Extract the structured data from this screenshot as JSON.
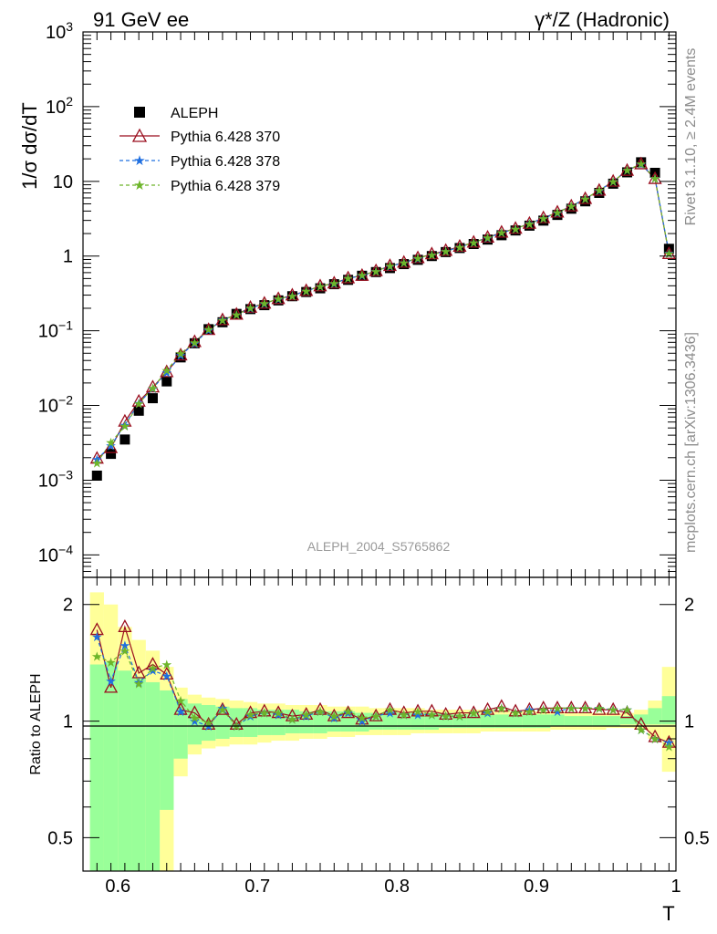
{
  "header": {
    "left": "91 GeV ee",
    "right": "γ*/Z (Hadronic)"
  },
  "side_text": {
    "upper": "Rivet 3.1.10, ≥ 2.4M events",
    "lower": "mcplots.cern.ch [arXiv:1306.3436]"
  },
  "analysis_label": "ALEPH_2004_S5765862",
  "colors": {
    "data": "#000000",
    "p370": "#9a0e1e",
    "p378": "#1f6fe0",
    "p379": "#6db52a",
    "band_yellow": "#ffff99",
    "band_green": "#99ff99"
  },
  "chart_data": [
    {
      "type": "scatter",
      "panel": "main",
      "ylabel": "1/σ dσ/dT",
      "yscale": "log",
      "ylim": [
        5e-05,
        1000
      ],
      "xlim": [
        0.575,
        1.0
      ],
      "y_ticks": [
        "10^-4",
        "10^-3",
        "10^-2",
        "10^-1",
        "1",
        "10",
        "10^2",
        "10^3"
      ],
      "legend_position": "top-left",
      "legend": [
        "ALEPH",
        "Pythia 6.428 370",
        "Pythia 6.428 378",
        "Pythia 6.428 379"
      ],
      "x": [
        0.585,
        0.595,
        0.605,
        0.615,
        0.625,
        0.635,
        0.645,
        0.655,
        0.665,
        0.675,
        0.685,
        0.695,
        0.705,
        0.715,
        0.725,
        0.735,
        0.745,
        0.755,
        0.765,
        0.775,
        0.785,
        0.795,
        0.805,
        0.815,
        0.825,
        0.835,
        0.845,
        0.855,
        0.865,
        0.875,
        0.885,
        0.895,
        0.905,
        0.915,
        0.925,
        0.935,
        0.945,
        0.955,
        0.965,
        0.975,
        0.985,
        0.995
      ],
      "series": [
        {
          "name": "ALEPH",
          "values": [
            0.00115,
            0.00225,
            0.0035,
            0.0085,
            0.0125,
            0.021,
            0.044,
            0.068,
            0.105,
            0.13,
            0.168,
            0.195,
            0.22,
            0.255,
            0.29,
            0.33,
            0.37,
            0.42,
            0.48,
            0.545,
            0.61,
            0.69,
            0.78,
            0.89,
            1.0,
            1.13,
            1.28,
            1.45,
            1.66,
            1.9,
            2.2,
            2.55,
            2.98,
            3.55,
            4.3,
            5.4,
            7.0,
            9.3,
            13.2,
            18.0,
            13.0,
            1.25
          ]
        },
        {
          "name": "Pythia 6.428 370",
          "values": [
            0.00195,
            0.0027,
            0.0061,
            0.0113,
            0.0175,
            0.028,
            0.047,
            0.071,
            0.103,
            0.139,
            0.165,
            0.204,
            0.232,
            0.267,
            0.298,
            0.342,
            0.395,
            0.432,
            0.506,
            0.547,
            0.631,
            0.738,
            0.817,
            0.941,
            1.06,
            1.18,
            1.34,
            1.52,
            1.77,
            2.07,
            2.33,
            2.72,
            3.23,
            3.84,
            4.64,
            5.83,
            7.53,
            9.94,
            13.9,
            17.0,
            10.8,
            1.07
          ]
        },
        {
          "name": "Pythia 6.428 378",
          "values": [
            0.0019,
            0.0029,
            0.0055,
            0.0107,
            0.0169,
            0.0275,
            0.0469,
            0.0681,
            0.102,
            0.14,
            0.163,
            0.2,
            0.231,
            0.264,
            0.293,
            0.341,
            0.393,
            0.429,
            0.502,
            0.547,
            0.626,
            0.728,
            0.816,
            0.925,
            1.04,
            1.16,
            1.32,
            1.52,
            1.75,
            2.05,
            2.31,
            2.72,
            3.2,
            3.77,
            4.65,
            5.83,
            7.55,
            9.96,
            14.1,
            17.0,
            11.0,
            1.1
          ]
        },
        {
          "name": "Pythia 6.428 379",
          "values": [
            0.0017,
            0.0032,
            0.0053,
            0.0106,
            0.0171,
            0.0294,
            0.0497,
            0.0695,
            0.104,
            0.139,
            0.163,
            0.202,
            0.232,
            0.267,
            0.294,
            0.343,
            0.392,
            0.434,
            0.508,
            0.554,
            0.626,
            0.739,
            0.814,
            0.944,
            1.04,
            1.16,
            1.32,
            1.52,
            1.76,
            2.05,
            2.32,
            2.71,
            3.2,
            3.84,
            4.65,
            5.85,
            7.57,
            9.96,
            14.1,
            17.1,
            11.0,
            1.08
          ]
        }
      ]
    },
    {
      "type": "line",
      "panel": "ratio",
      "ylabel": "Ratio to ALEPH",
      "xlabel": "T",
      "ylim": [
        0.41,
        2.35
      ],
      "y_ticks": [
        "0.5",
        "1",
        "2"
      ],
      "x_ticks": [
        "0.6",
        "0.7",
        "0.8",
        "0.9",
        "1"
      ],
      "x": [
        0.585,
        0.595,
        0.605,
        0.615,
        0.625,
        0.635,
        0.645,
        0.655,
        0.665,
        0.675,
        0.685,
        0.695,
        0.705,
        0.715,
        0.725,
        0.735,
        0.745,
        0.755,
        0.765,
        0.775,
        0.785,
        0.795,
        0.805,
        0.815,
        0.825,
        0.835,
        0.845,
        0.855,
        0.865,
        0.875,
        0.885,
        0.895,
        0.905,
        0.915,
        0.925,
        0.935,
        0.945,
        0.955,
        0.965,
        0.975,
        0.985,
        0.995
      ],
      "band_stat": {
        "lo": [
          0.41,
          0.41,
          0.41,
          0.41,
          0.41,
          0.59,
          0.8,
          0.87,
          0.89,
          0.9,
          0.91,
          0.91,
          0.92,
          0.92,
          0.93,
          0.93,
          0.93,
          0.94,
          0.94,
          0.94,
          0.95,
          0.95,
          0.95,
          0.95,
          0.95,
          0.96,
          0.96,
          0.96,
          0.96,
          0.96,
          0.96,
          0.96,
          0.96,
          0.97,
          0.97,
          0.97,
          0.97,
          0.97,
          0.98,
          0.98,
          0.98,
          0.98
        ],
        "hi": [
          1.4,
          1.42,
          1.35,
          1.3,
          1.26,
          1.2,
          1.14,
          1.11,
          1.1,
          1.09,
          1.08,
          1.08,
          1.07,
          1.07,
          1.07,
          1.06,
          1.06,
          1.06,
          1.06,
          1.05,
          1.05,
          1.05,
          1.05,
          1.05,
          1.05,
          1.05,
          1.04,
          1.04,
          1.04,
          1.04,
          1.04,
          1.04,
          1.04,
          1.04,
          1.03,
          1.03,
          1.03,
          1.03,
          1.03,
          1.04,
          1.08,
          1.16
        ]
      },
      "band_total": {
        "lo": [
          0.41,
          0.41,
          0.41,
          0.41,
          0.41,
          0.41,
          0.72,
          0.82,
          0.85,
          0.86,
          0.87,
          0.87,
          0.88,
          0.89,
          0.89,
          0.9,
          0.9,
          0.91,
          0.91,
          0.92,
          0.92,
          0.92,
          0.92,
          0.93,
          0.93,
          0.93,
          0.93,
          0.93,
          0.94,
          0.94,
          0.94,
          0.94,
          0.94,
          0.95,
          0.95,
          0.95,
          0.95,
          0.96,
          0.96,
          0.95,
          0.9,
          0.74
        ]
      },
      "band_total_hi": [
        2.15,
        2.0,
        1.75,
        1.62,
        1.52,
        1.38,
        1.22,
        1.17,
        1.15,
        1.14,
        1.13,
        1.12,
        1.11,
        1.11,
        1.1,
        1.1,
        1.1,
        1.09,
        1.09,
        1.09,
        1.08,
        1.08,
        1.08,
        1.08,
        1.07,
        1.07,
        1.07,
        1.07,
        1.07,
        1.07,
        1.06,
        1.06,
        1.06,
        1.06,
        1.05,
        1.05,
        1.05,
        1.05,
        1.05,
        1.07,
        1.13,
        1.38
      ],
      "series": [
        {
          "name": "Pythia 6.428 370",
          "values": [
            1.72,
            1.22,
            1.75,
            1.33,
            1.4,
            1.32,
            1.07,
            1.05,
            0.98,
            1.07,
            0.98,
            1.05,
            1.06,
            1.05,
            1.03,
            1.04,
            1.07,
            1.03,
            1.05,
            1.01,
            1.03,
            1.07,
            1.05,
            1.06,
            1.06,
            1.04,
            1.05,
            1.05,
            1.07,
            1.09,
            1.06,
            1.07,
            1.08,
            1.08,
            1.08,
            1.08,
            1.07,
            1.07,
            1.05,
            0.98,
            0.91,
            0.88
          ]
        },
        {
          "name": "Pythia 6.428 378",
          "values": [
            1.65,
            1.27,
            1.57,
            1.26,
            1.35,
            1.31,
            1.06,
            1.0,
            0.97,
            1.08,
            0.97,
            1.03,
            1.05,
            1.04,
            1.01,
            1.03,
            1.06,
            1.02,
            1.05,
            1.0,
            1.03,
            1.05,
            1.04,
            1.04,
            1.04,
            1.03,
            1.03,
            1.05,
            1.05,
            1.08,
            1.05,
            1.07,
            1.07,
            1.06,
            1.08,
            1.08,
            1.08,
            1.07,
            1.07,
            0.95,
            0.9,
            0.88
          ]
        },
        {
          "name": "Pythia 6.428 379",
          "values": [
            1.47,
            1.42,
            1.52,
            1.25,
            1.37,
            1.4,
            1.13,
            1.02,
            0.99,
            1.07,
            0.97,
            1.04,
            1.05,
            1.05,
            1.01,
            1.04,
            1.06,
            1.03,
            1.06,
            1.02,
            1.03,
            1.07,
            1.04,
            1.06,
            1.04,
            1.03,
            1.03,
            1.05,
            1.06,
            1.08,
            1.05,
            1.06,
            1.07,
            1.08,
            1.08,
            1.08,
            1.08,
            1.07,
            1.07,
            0.95,
            0.9,
            0.86
          ]
        }
      ]
    }
  ]
}
